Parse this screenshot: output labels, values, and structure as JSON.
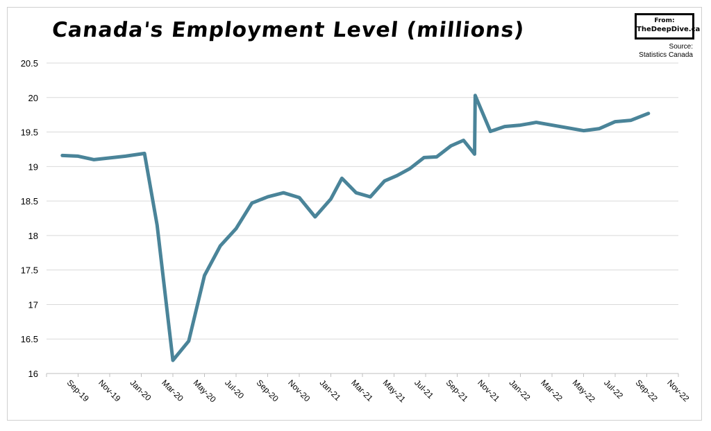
{
  "logo": {
    "from": "From:",
    "site": "TheDeepDive.ca"
  },
  "source": {
    "line1": "Source:",
    "line2": "Statistics Canada"
  },
  "chart_data": {
    "type": "line",
    "title": "Canada's Employment Level (millions)",
    "xlabel": "",
    "ylabel": "",
    "ylim": [
      16,
      20.5
    ],
    "yticks": [
      16,
      16.5,
      17,
      17.5,
      18,
      18.5,
      19,
      19.5,
      20,
      20.5
    ],
    "grid": true,
    "legend": "none",
    "line_color": "#4a8499",
    "x": [
      "Sep-19",
      "Oct-19",
      "Nov-19",
      "Dec-19",
      "Jan-20",
      "Feb-20",
      "Mar-20",
      "Apr-20",
      "May-20",
      "Jun-20",
      "Jul-20",
      "Aug-20",
      "Sep-20",
      "Oct-20",
      "Nov-20",
      "Dec-20",
      "Jan-21",
      "Feb-21",
      "Mar-21",
      "Apr-21",
      "May-21",
      "Jun-21",
      "Jul-21",
      "Aug-21",
      "Sep-21",
      "Oct-21",
      "Nov-21",
      "Dec-21",
      "Jan-22",
      "Feb-22",
      "Mar-22",
      "Apr-22",
      "May-22",
      "Jun-22",
      "Jul-22",
      "Aug-22",
      "Sep-22",
      "Oct-22",
      "Nov-22"
    ],
    "xticklabels": [
      "Sep-19",
      "Nov-19",
      "Jan-20",
      "Mar-20",
      "May-20",
      "Jul-20",
      "Sep-20",
      "Nov-20",
      "Jan-21",
      "Mar-21",
      "May-21",
      "Jul-21",
      "Sep-21",
      "Nov-21",
      "Jan-22",
      "Mar-22",
      "May-22",
      "Jul-22",
      "Sep-22",
      "Nov-22"
    ],
    "series": [
      {
        "values": [
          [
            0,
            19.16
          ],
          [
            0.5,
            19.15
          ],
          [
            1,
            19.1
          ],
          [
            2,
            19.15
          ],
          [
            2.6,
            19.19
          ],
          [
            3,
            18.15
          ],
          [
            3.5,
            16.19
          ],
          [
            4,
            16.47
          ],
          [
            4.5,
            17.42
          ],
          [
            5,
            17.85
          ],
          [
            5.5,
            18.1
          ],
          [
            6,
            18.47
          ],
          [
            6.5,
            18.56
          ],
          [
            7,
            18.62
          ],
          [
            7.5,
            18.55
          ],
          [
            8,
            18.27
          ],
          [
            8.5,
            18.53
          ],
          [
            8.85,
            18.83
          ],
          [
            9.3,
            18.62
          ],
          [
            9.75,
            18.56
          ],
          [
            10.2,
            18.79
          ],
          [
            10.6,
            18.87
          ],
          [
            11,
            18.97
          ],
          [
            11.45,
            19.13
          ],
          [
            11.85,
            19.14
          ],
          [
            12.3,
            19.3
          ],
          [
            12.7,
            19.38
          ],
          [
            13.05,
            19.18
          ],
          [
            13.07,
            20.03
          ],
          [
            13.55,
            19.51
          ],
          [
            14,
            19.58
          ],
          [
            14.5,
            19.6
          ],
          [
            15,
            19.64
          ],
          [
            15.5,
            19.6
          ],
          [
            16,
            19.56
          ],
          [
            16.5,
            19.52
          ],
          [
            17,
            19.55
          ],
          [
            17.5,
            19.65
          ],
          [
            18,
            19.67
          ],
          [
            18.55,
            19.77
          ]
        ]
      }
    ]
  }
}
